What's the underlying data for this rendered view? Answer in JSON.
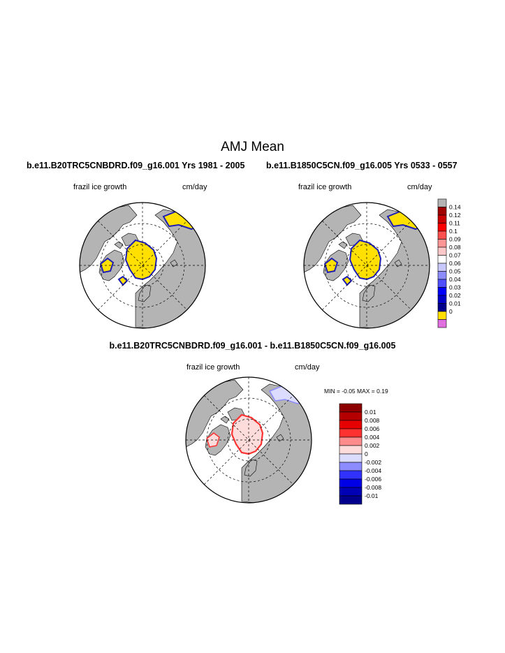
{
  "title": "AMJ Mean",
  "panels": [
    {
      "case_title": "b.e11.B20TRC5CNBDRD.f09_g16.001  Yrs 1981 - 2005",
      "variable": "frazil ice growth",
      "units": "cm/day"
    },
    {
      "case_title": "b.e11.B1850C5CN.f09_g16.005  Yrs 0533 - 0557",
      "variable": "frazil ice growth",
      "units": "cm/day"
    },
    {
      "case_title": "b.e11.B20TRC5CNBDRD.f09_g16.001 - b.e11.B1850C5CN.f09_g16.005",
      "variable": "frazil ice growth",
      "units": "cm/day",
      "min_label": "MIN =",
      "min_value": "-0.05",
      "max_label": "MAX =",
      "max_value": "0.19"
    }
  ],
  "colorbar_mean": {
    "labels": [
      "0.14",
      "0.12",
      "0.11",
      "0.1",
      "0.09",
      "0.08",
      "0.07",
      "0.06",
      "0.05",
      "0.04",
      "0.03",
      "0.02",
      "0.01",
      "0"
    ],
    "colors": [
      "#b4b4b4",
      "#a00000",
      "#c80000",
      "#ff0000",
      "#ff5050",
      "#ff9696",
      "#ffc8c8",
      "#ffffff",
      "#c8c8ff",
      "#8c8cff",
      "#5050ff",
      "#0000ff",
      "#0000c8",
      "#00008c",
      "#ffe000",
      "#e070e0"
    ]
  },
  "colorbar_diff": {
    "labels": [
      "0.01",
      "0.008",
      "0.006",
      "0.004",
      "0.002",
      "0",
      "-0.002",
      "-0.004",
      "-0.006",
      "-0.008",
      "-0.01"
    ],
    "colors": [
      "#8c0000",
      "#b40000",
      "#e60000",
      "#ff3232",
      "#ff8c8c",
      "#ffdcdc",
      "#dcdcff",
      "#8c8cff",
      "#3232ff",
      "#0000e6",
      "#0000b4",
      "#00008c"
    ]
  },
  "map_colors": {
    "land": "#b4b4b4",
    "ocean": "#ffffff",
    "frazil_low": "#ffe000",
    "frazil_edge": "#1e1eb4",
    "diff_pos": "#ff3232",
    "diff_neg": "#8c8cff",
    "diff_fill": "#ffdcdc"
  },
  "projection": "north-polar-stereographic"
}
